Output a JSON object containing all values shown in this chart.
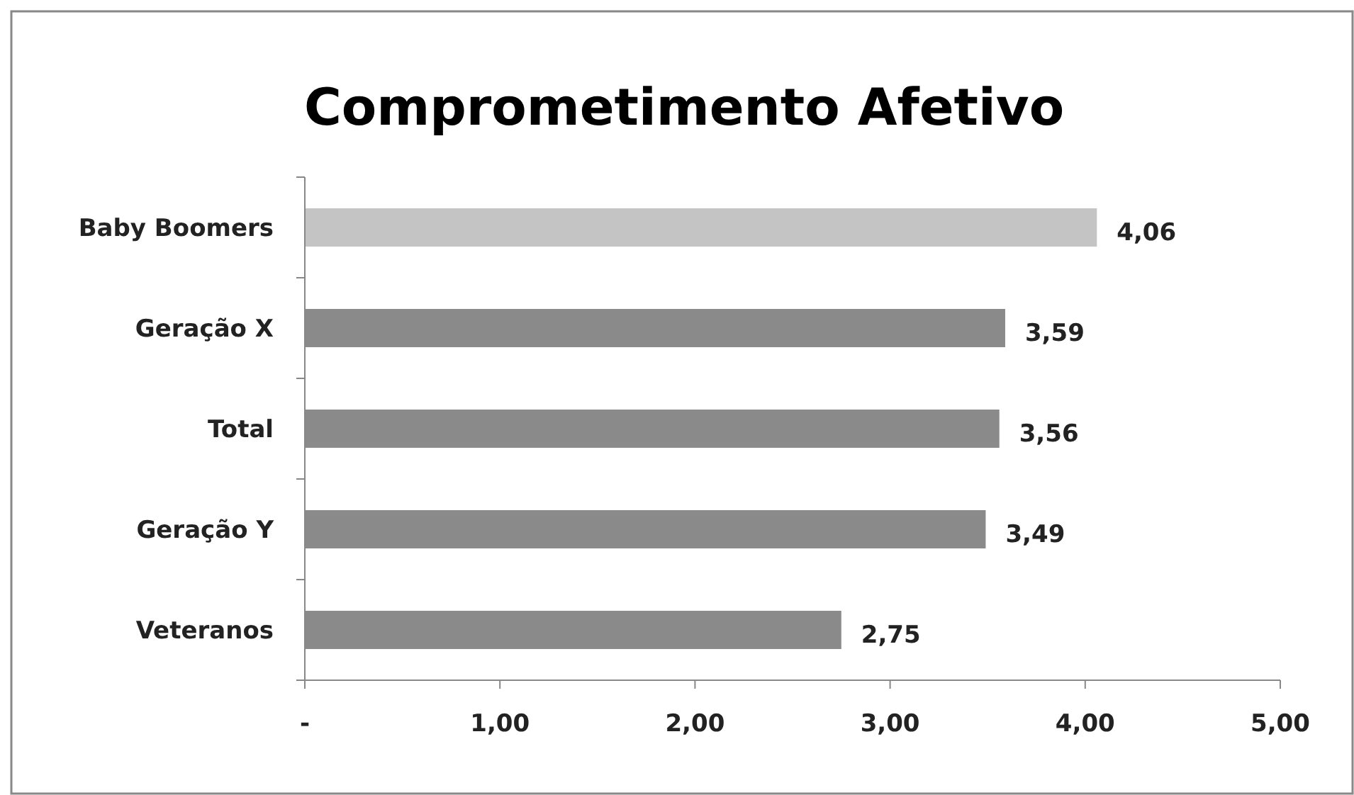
{
  "chart_data": {
    "type": "bar",
    "orientation": "horizontal",
    "title": "Comprometimento Afetivo",
    "categories": [
      "Baby Boomers",
      "Geração X",
      "Total",
      "Geração Y",
      "Veteranos"
    ],
    "values": [
      4.06,
      3.59,
      3.56,
      3.49,
      2.75
    ],
    "colors": [
      "#c4c4c4",
      "#8a8a8a",
      "#8a8a8a",
      "#8a8a8a",
      "#8a8a8a"
    ],
    "value_labels": [
      "4,06",
      "3,59",
      "3,56",
      "3,49",
      "2,75"
    ],
    "xlim": [
      0,
      5
    ],
    "xticks": [
      {
        "value": 0,
        "label": "-"
      },
      {
        "value": 1,
        "label": "1,00"
      },
      {
        "value": 2,
        "label": "2,00"
      },
      {
        "value": 3,
        "label": "3,00"
      },
      {
        "value": 4,
        "label": "4,00"
      },
      {
        "value": 5,
        "label": "5,00"
      }
    ],
    "grid": false
  }
}
